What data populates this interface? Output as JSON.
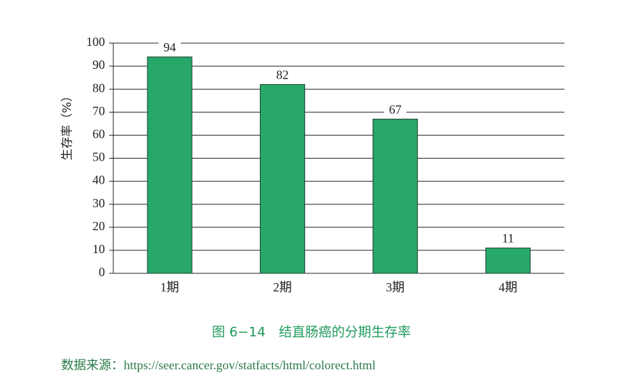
{
  "chart_data": {
    "type": "bar",
    "y_label": "生存率（%）",
    "categories": [
      "1期",
      "2期",
      "3期",
      "4期"
    ],
    "values": [
      94,
      82,
      67,
      11
    ],
    "color": "#27a86a",
    "ylim": [
      0,
      100
    ],
    "yticks": [
      0,
      10,
      20,
      30,
      40,
      50,
      60,
      70,
      80,
      90,
      100
    ],
    "grid": true,
    "caption": "图 6−14　结直肠癌的分期生存率",
    "source": "数据来源：https://seer.cancer.gov/statfacts/html/colorect.html"
  }
}
